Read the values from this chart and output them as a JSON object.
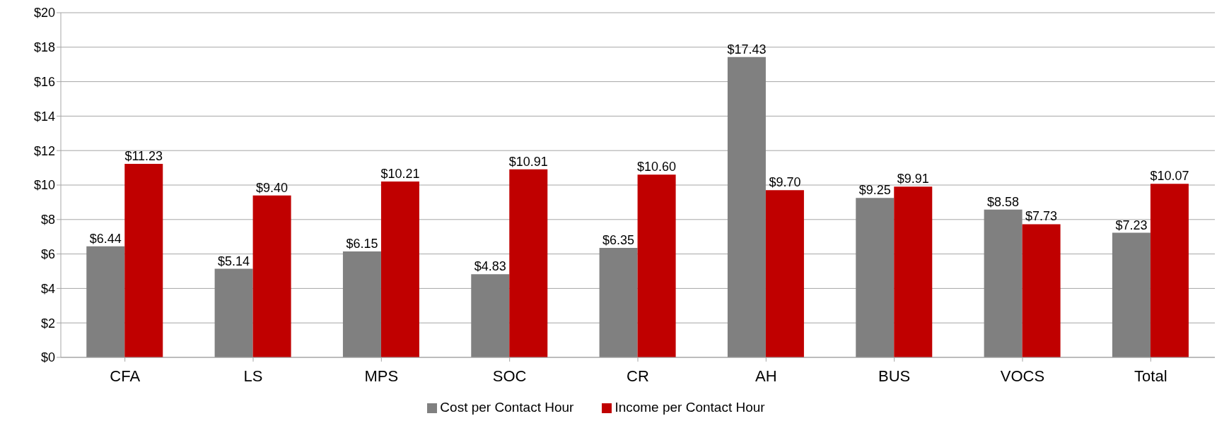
{
  "chart_data": {
    "type": "bar",
    "categories": [
      "CFA",
      "LS",
      "MPS",
      "SOC",
      "CR",
      "AH",
      "BUS",
      "VOCS",
      "Total"
    ],
    "series": [
      {
        "name": "Cost per Contact Hour",
        "color": "#808080",
        "values": [
          6.44,
          5.14,
          6.15,
          4.83,
          6.35,
          17.43,
          9.25,
          8.58,
          7.23
        ],
        "value_labels": [
          "$6.44",
          "$5.14",
          "$6.15",
          "$4.83",
          "$6.35",
          "$17.43",
          "$9.25",
          "$8.58",
          "$7.23"
        ]
      },
      {
        "name": "Income per Contact Hour",
        "color": "#c00000",
        "values": [
          11.23,
          9.4,
          10.21,
          10.91,
          10.6,
          9.7,
          9.91,
          7.73,
          10.07
        ],
        "value_labels": [
          "$11.23",
          "$9.40",
          "$10.21",
          "$10.91",
          "$10.60",
          "$9.70",
          "$9.91",
          "$7.73",
          "$10.07"
        ]
      }
    ],
    "ylim": [
      0,
      20
    ],
    "yticks": [
      {
        "value": 0,
        "label": "$0"
      },
      {
        "value": 2,
        "label": "$2"
      },
      {
        "value": 4,
        "label": "$4"
      },
      {
        "value": 6,
        "label": "$6"
      },
      {
        "value": 8,
        "label": "$8"
      },
      {
        "value": 10,
        "label": "$10"
      },
      {
        "value": 12,
        "label": "$12"
      },
      {
        "value": 14,
        "label": "$14"
      },
      {
        "value": 16,
        "label": "$16"
      },
      {
        "value": 18,
        "label": "$18"
      },
      {
        "value": 20,
        "label": "$20"
      }
    ],
    "grid": "y",
    "legend": "bottom"
  }
}
